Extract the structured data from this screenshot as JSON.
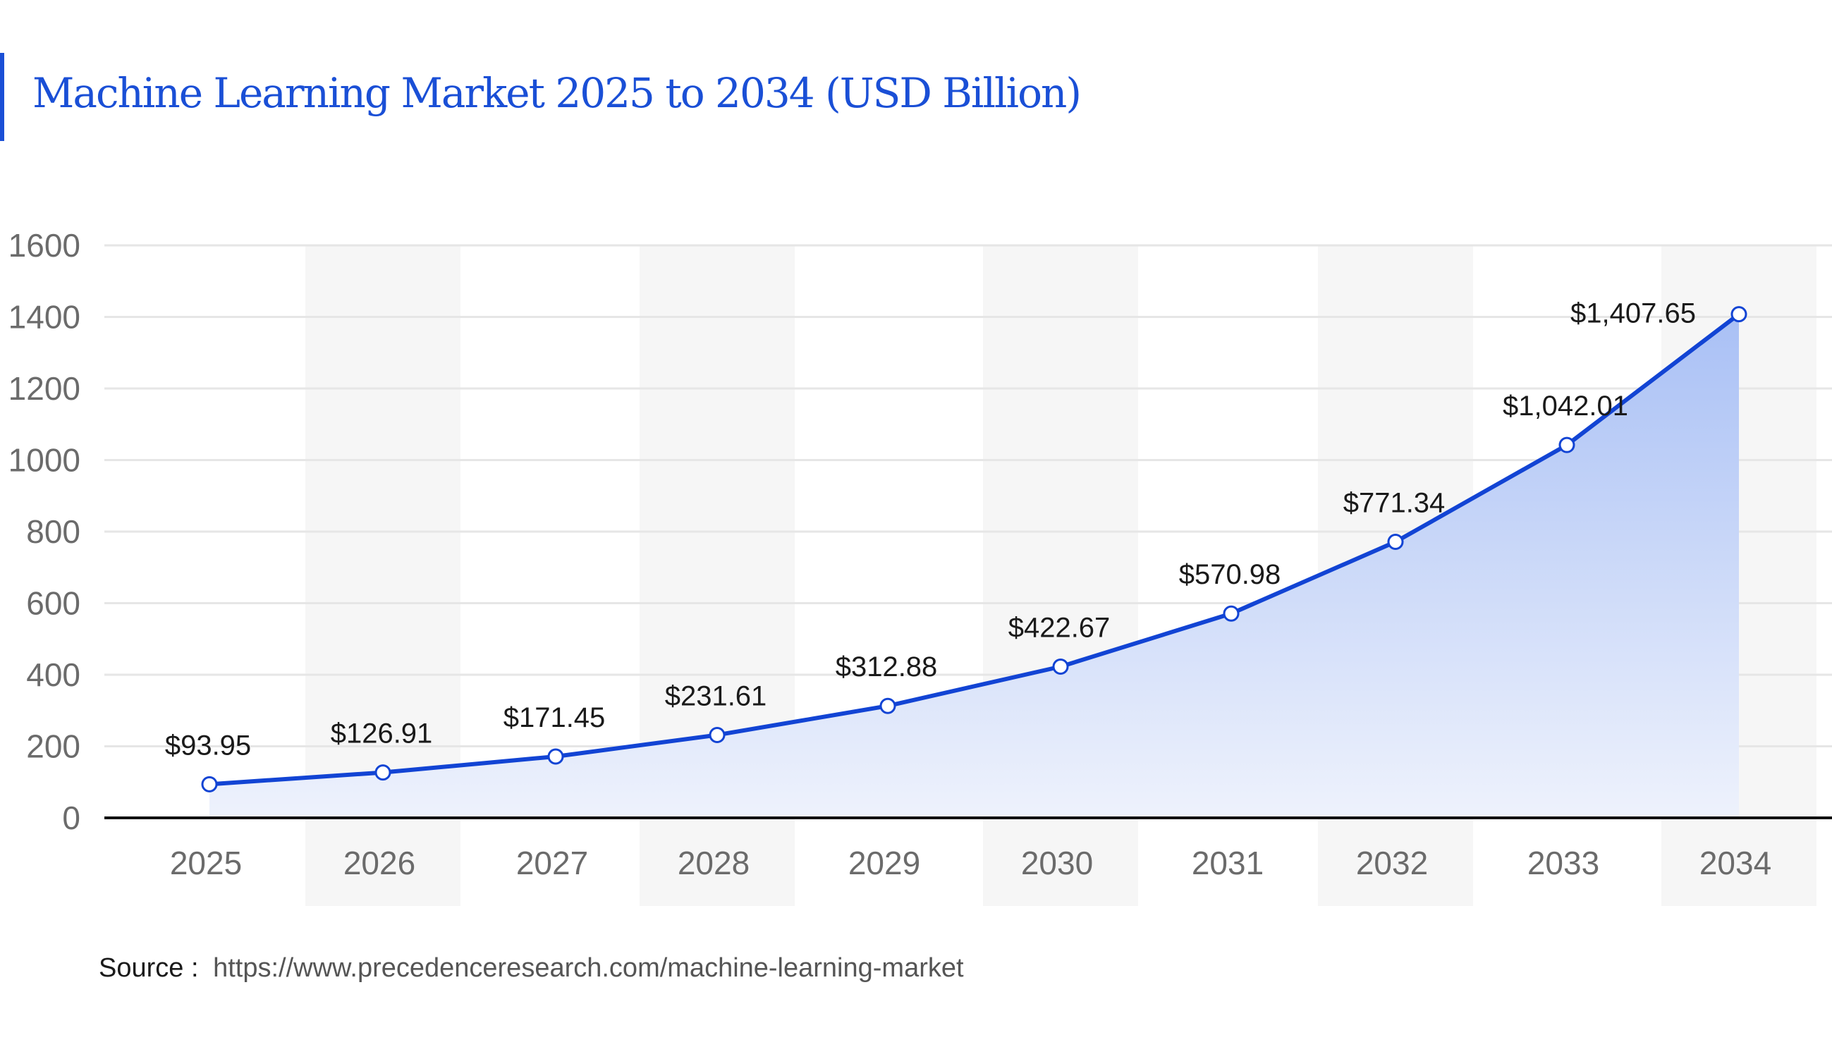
{
  "title": "Machine Learning Market 2025 to 2034 (USD Billion)",
  "source": {
    "label": "Source :",
    "url": "https://www.precedenceresearch.com/machine-learning-market"
  },
  "colors": {
    "title": "#1a4fd6",
    "line": "#1244d4",
    "area_top": "#a9c0f5",
    "area_bottom": "#eef2fc",
    "band": "#f6f6f6",
    "grid": "#e6e6e6",
    "axis": "#111111",
    "tick_text": "#6b6b6b",
    "label_text": "#1a1a1a"
  },
  "chart_data": {
    "type": "area",
    "title": "Machine Learning Market 2025 to 2034 (USD Billion)",
    "xlabel": "",
    "ylabel": "",
    "categories": [
      "2025",
      "2026",
      "2027",
      "2028",
      "2029",
      "2030",
      "2031",
      "2032",
      "2033",
      "2034"
    ],
    "values": [
      93.95,
      126.91,
      171.45,
      231.61,
      312.88,
      422.67,
      570.98,
      771.34,
      1042.01,
      1407.65
    ],
    "value_labels": [
      "$93.95",
      "$126.91",
      "$171.45",
      "$231.61",
      "$312.88",
      "$422.67",
      "$570.98",
      "$771.34",
      "$1,042.01",
      "$1,407.65"
    ],
    "ylim": [
      0,
      1600
    ],
    "yticks": [
      0,
      200,
      400,
      600,
      800,
      1000,
      1200,
      1400,
      1600
    ],
    "grid": true,
    "alternating_bands": true,
    "legend": "none",
    "markers": "hollow-circle"
  }
}
